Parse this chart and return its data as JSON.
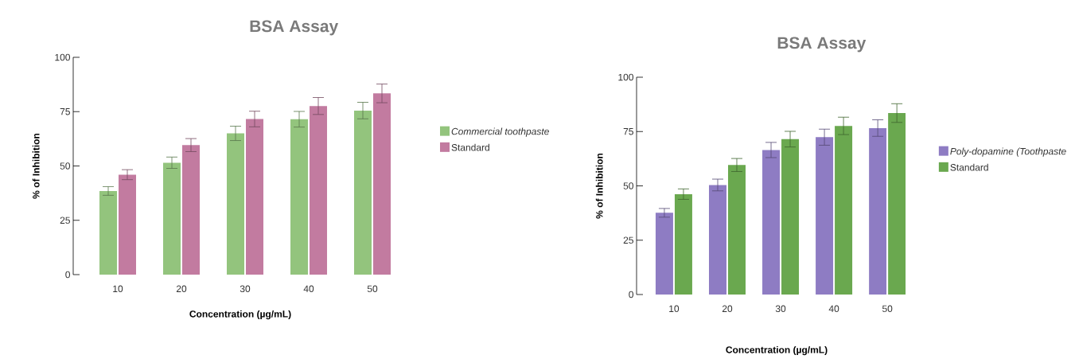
{
  "chart_data": [
    {
      "type": "bar",
      "title": "BSA Assay",
      "xlabel": "Concentration (µg/mL)",
      "ylabel": "% of Inhibition",
      "categories": [
        "10",
        "20",
        "30",
        "40",
        "50"
      ],
      "ylim": [
        0,
        100
      ],
      "yticks": [
        0,
        25,
        50,
        75,
        100
      ],
      "legend": "right",
      "series": [
        {
          "name": "Commercial toothpaste",
          "color": "#93c47d",
          "values": [
            38.5,
            51.5,
            65,
            71.5,
            75.5
          ],
          "errors": [
            2,
            2.6,
            3.3,
            3.6,
            3.8
          ]
        },
        {
          "name": "Standard",
          "color": "#c27ba0",
          "values": [
            46,
            59.6,
            71.6,
            77.6,
            83.4
          ],
          "errors": [
            2.3,
            3,
            3.6,
            3.9,
            4.3
          ]
        }
      ]
    },
    {
      "type": "bar",
      "title": "BSA Assay",
      "xlabel": "Concentration (µg/mL)",
      "ylabel": "% of Inhibition",
      "categories": [
        "10",
        "20",
        "30",
        "40",
        "50"
      ],
      "ylim": [
        0,
        100
      ],
      "yticks": [
        0,
        25,
        50,
        75,
        100
      ],
      "legend": "right",
      "series": [
        {
          "name": "Poly-dopamine (Toothpaste",
          "color": "#8e7cc3",
          "values": [
            37.6,
            50.4,
            66.5,
            72.4,
            76.6
          ],
          "errors": [
            2,
            2.7,
            3.5,
            3.7,
            3.8
          ]
        },
        {
          "name": "Standard",
          "color": "#6aa84f",
          "values": [
            46.2,
            59.6,
            71.5,
            77.6,
            83.5
          ],
          "errors": [
            2.4,
            3,
            3.6,
            4,
            4.3
          ]
        }
      ]
    }
  ]
}
